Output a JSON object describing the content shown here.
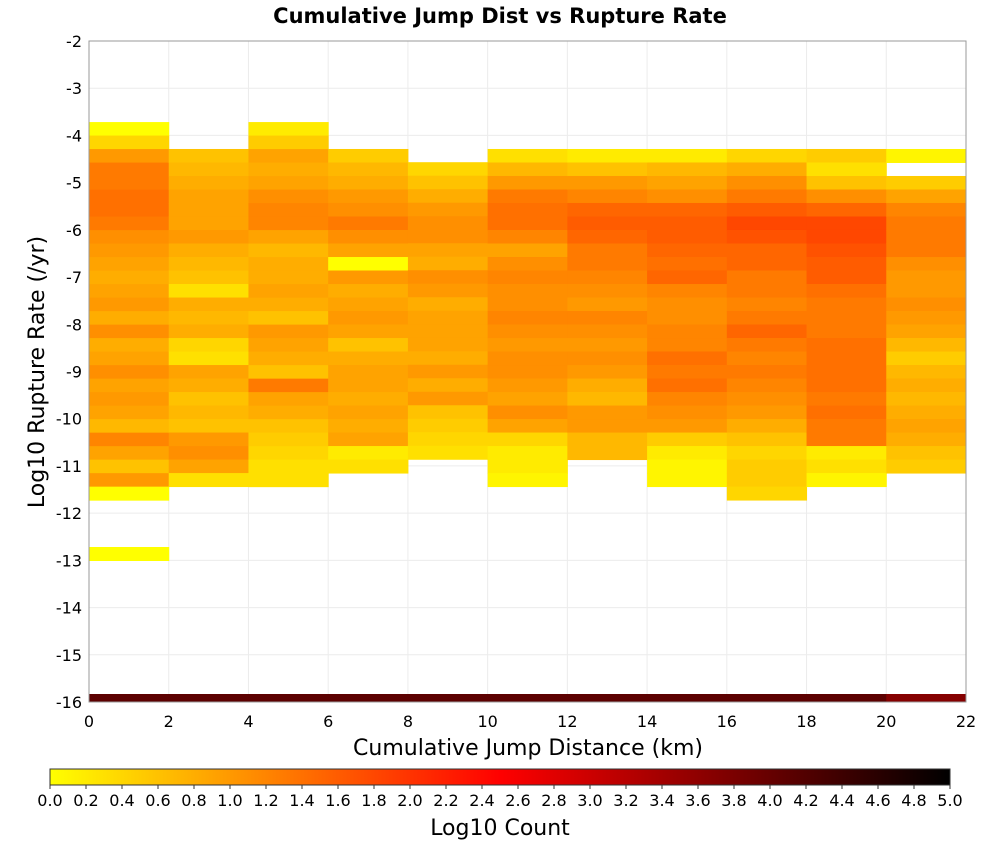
{
  "chart_data": {
    "type": "heatmap",
    "title": "Cumulative Jump Dist vs Rupture Rate",
    "xlabel": "Cumulative Jump Distance (km)",
    "ylabel": "Log10 Rupture Rate (/yr)",
    "xlim": [
      0,
      22
    ],
    "ylim": [
      -16,
      -2
    ],
    "x_ticks": [
      "0",
      "2",
      "4",
      "6",
      "8",
      "10",
      "12",
      "14",
      "16",
      "18",
      "20",
      "22"
    ],
    "y_ticks": [
      "-2",
      "-3",
      "-4",
      "-5",
      "-6",
      "-7",
      "-8",
      "-9",
      "-10",
      "-11",
      "-12",
      "-13",
      "-14",
      "-15",
      "-16"
    ],
    "grid": true,
    "bin_width_x": 2,
    "bin_height_y": 0.286,
    "colorbar": {
      "label": "Log10 Count",
      "range": [
        0,
        5
      ],
      "ticks": [
        "0.0",
        "0.2",
        "0.4",
        "0.6",
        "0.8",
        "1.0",
        "1.2",
        "1.4",
        "1.6",
        "1.8",
        "2.0",
        "2.2",
        "2.4",
        "2.6",
        "2.8",
        "3.0",
        "3.2",
        "3.4",
        "3.6",
        "3.8",
        "4.0",
        "4.2",
        "4.4",
        "4.6",
        "4.8",
        "5.0"
      ],
      "colors": [
        "#ffff00",
        "#ffaa00",
        "#ff5500",
        "#ff0000",
        "#aa0000",
        "#550000",
        "#000000"
      ]
    },
    "columns": [
      {
        "x": 1,
        "y_start": -3.86,
        "values": [
          0.0,
          0.4,
          1.0,
          1.3,
          1.3,
          1.4,
          1.4,
          1.3,
          1.1,
          1.0,
          0.9,
          0.8,
          0.9,
          1.0,
          0.8,
          1.1,
          0.8,
          0.9,
          1.1,
          0.9,
          1.0,
          0.9,
          0.7,
          1.2,
          0.9,
          0.6,
          1.0,
          0.0
        ]
      },
      {
        "x": 3,
        "y_start": -4.43,
        "values": [
          0.6,
          0.7,
          0.8,
          0.9,
          0.9,
          0.9,
          1.0,
          0.8,
          0.7,
          0.6,
          0.3,
          0.8,
          0.7,
          0.8,
          0.4,
          0.3,
          0.9,
          0.8,
          0.6,
          0.7,
          0.6,
          1.0,
          1.1,
          0.9,
          0.3
        ]
      },
      {
        "x": 5,
        "y_start": -3.86,
        "values": [
          0.2,
          0.5,
          0.9,
          0.8,
          0.9,
          1.1,
          1.2,
          1.2,
          0.9,
          0.7,
          0.8,
          0.8,
          0.9,
          0.8,
          0.6,
          1.0,
          0.9,
          0.8,
          0.6,
          1.3,
          0.9,
          0.8,
          0.6,
          0.5,
          0.4,
          0.3,
          0.3
        ]
      },
      {
        "x": 7,
        "y_start": -4.43,
        "values": [
          0.5,
          0.7,
          0.8,
          1.0,
          1.1,
          1.3,
          1.1,
          0.9,
          0.0,
          1.0,
          0.8,
          0.9,
          1.0,
          0.9,
          0.6,
          0.8,
          0.9,
          0.9,
          0.8,
          0.9,
          0.8,
          0.9,
          0.2,
          0.3
        ]
      },
      {
        "x": 9,
        "y_start": -4.71,
        "values": [
          0.4,
          0.6,
          0.8,
          1.0,
          1.1,
          1.1,
          0.9,
          0.8,
          1.1,
          1.0,
          0.8,
          0.9,
          0.9,
          0.9,
          0.8,
          1.0,
          0.8,
          1.0,
          0.6,
          0.5,
          0.4,
          0.3
        ]
      },
      {
        "x": 11,
        "y_start": -4.43,
        "values": [
          0.3,
          0.7,
          1.0,
          1.3,
          1.4,
          1.4,
          1.2,
          0.9,
          1.1,
          1.2,
          1.1,
          1.1,
          1.2,
          1.1,
          1.0,
          1.1,
          1.1,
          1.0,
          0.9,
          1.1,
          0.9,
          0.4,
          0.2,
          0.2,
          0.1
        ]
      },
      {
        "x": 13,
        "y_start": -4.43,
        "values": [
          0.2,
          0.6,
          1.0,
          1.2,
          1.5,
          1.6,
          1.5,
          1.3,
          1.3,
          1.2,
          1.1,
          1.0,
          1.2,
          1.1,
          1.0,
          1.1,
          1.0,
          0.8,
          0.7,
          1.0,
          1.0,
          0.7,
          0.7
        ]
      },
      {
        "x": 15,
        "y_start": -4.43,
        "values": [
          0.2,
          0.7,
          0.9,
          1.1,
          1.5,
          1.6,
          1.6,
          1.5,
          1.4,
          1.5,
          1.2,
          1.1,
          1.1,
          1.2,
          1.2,
          1.4,
          1.3,
          1.4,
          1.2,
          1.1,
          1.0,
          0.5,
          0.2,
          0.1,
          0.1
        ]
      },
      {
        "x": 17,
        "y_start": -4.43,
        "values": [
          0.4,
          0.8,
          1.1,
          1.3,
          1.6,
          1.8,
          1.7,
          1.5,
          1.5,
          1.3,
          1.3,
          1.2,
          1.3,
          1.5,
          1.3,
          1.2,
          1.3,
          1.2,
          1.1,
          1.0,
          0.8,
          0.6,
          0.4,
          0.5,
          0.5,
          0.4
        ]
      },
      {
        "x": 19,
        "y_start": -4.43,
        "values": [
          0.5,
          0.3,
          0.6,
          1.1,
          1.5,
          1.8,
          1.8,
          1.7,
          1.6,
          1.6,
          1.4,
          1.3,
          1.3,
          1.3,
          1.4,
          1.4,
          1.4,
          1.4,
          1.3,
          1.4,
          1.3,
          1.3,
          0.2,
          0.3,
          0.1
        ]
      },
      {
        "x": 21,
        "y_start": -4.43,
        "values": [
          0.1,
          null,
          0.5,
          0.9,
          1.2,
          1.3,
          1.3,
          1.3,
          1.1,
          1.0,
          1.0,
          1.1,
          1.0,
          0.9,
          0.7,
          0.5,
          0.7,
          0.8,
          0.7,
          0.8,
          0.9,
          0.8,
          0.6,
          0.5
        ]
      }
    ],
    "bottom_row": {
      "y": -16,
      "values": [
        4.1,
        4.1,
        4.1,
        4.1,
        4.1,
        4.1,
        4.1,
        4.1,
        4.1,
        4.1,
        3.7
      ]
    },
    "extra_cells": [
      {
        "x": 1,
        "y": -12.86,
        "value": 0.0
      }
    ]
  }
}
